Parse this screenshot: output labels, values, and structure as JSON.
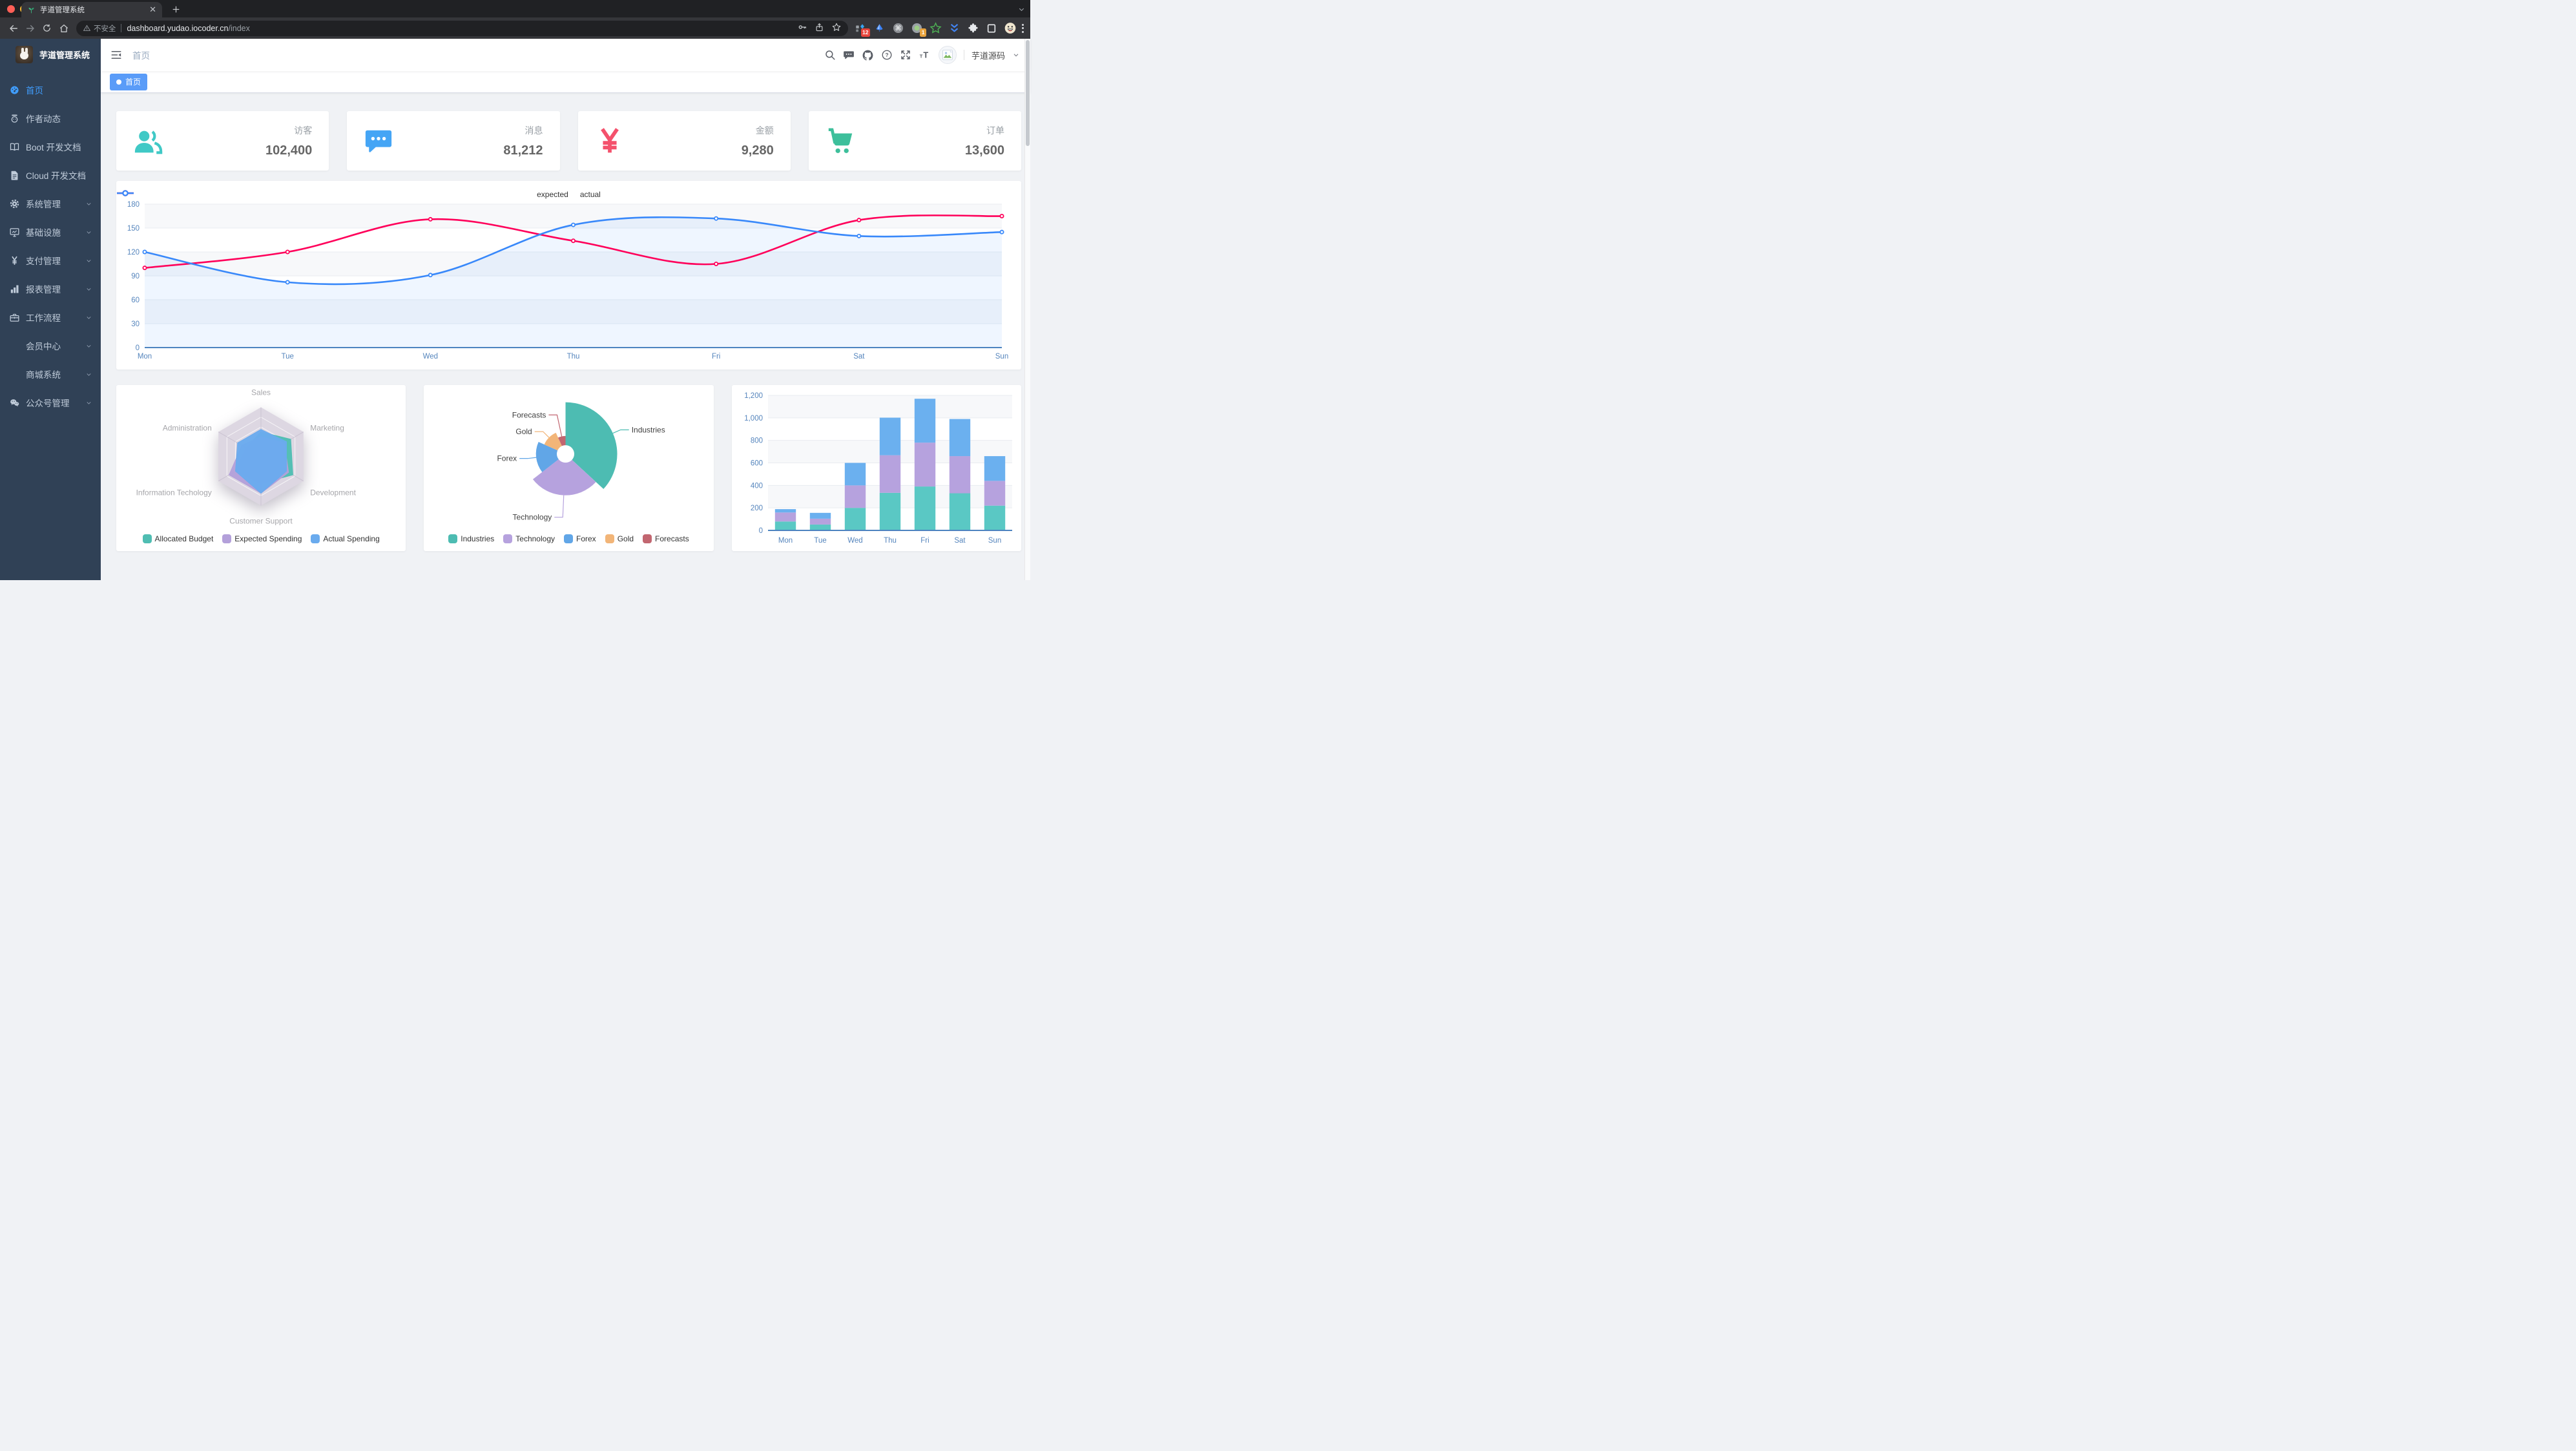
{
  "browser": {
    "tab_title": "芋道管理系统",
    "security_label": "不安全",
    "url_host": "dashboard.yudao.iocoder.cn",
    "url_path": "/index",
    "extension_badges": [
      "12",
      "1"
    ]
  },
  "sidebar": {
    "logo_title": "芋道管理系统",
    "items": [
      {
        "label": "首页",
        "icon": "dashboard",
        "active": true
      },
      {
        "label": "作者动态",
        "icon": "people"
      },
      {
        "label": "Boot 开发文档",
        "icon": "book"
      },
      {
        "label": "Cloud 开发文档",
        "icon": "document"
      },
      {
        "label": "系统管理",
        "icon": "gear",
        "expandable": true
      },
      {
        "label": "基础设施",
        "icon": "monitor",
        "expandable": true
      },
      {
        "label": "支付管理",
        "icon": "yen",
        "expandable": true
      },
      {
        "label": "报表管理",
        "icon": "barchart",
        "expandable": true
      },
      {
        "label": "工作流程",
        "icon": "briefcase",
        "expandable": true
      },
      {
        "label": "会员中心",
        "icon": null,
        "expandable": true
      },
      {
        "label": "商城系统",
        "icon": null,
        "expandable": true
      },
      {
        "label": "公众号管理",
        "icon": "wechat",
        "expandable": true
      }
    ]
  },
  "header": {
    "breadcrumb": "首页",
    "username": "芋道源码"
  },
  "tags": [
    {
      "label": "首页",
      "active": true
    }
  ],
  "stats": [
    {
      "label": "访客",
      "value": "102,400",
      "icon": "peoples",
      "color": "#40c9c6"
    },
    {
      "label": "消息",
      "value": "81,212",
      "icon": "message",
      "color": "#45a5f5"
    },
    {
      "label": "金额",
      "value": "9,280",
      "icon": "money",
      "color": "#f4516c"
    },
    {
      "label": "订单",
      "value": "13,600",
      "icon": "cart",
      "color": "#3dbf9b"
    }
  ],
  "colors": {
    "accent": "#409eff",
    "sidebar_bg": "#304156",
    "sidebar_text": "#bfcbd9",
    "tag_active": "#5a9cf8",
    "axis_label": "#5585bd"
  },
  "chart_data": [
    {
      "type": "line",
      "x": [
        "Mon",
        "Tue",
        "Wed",
        "Thu",
        "Fri",
        "Sat",
        "Sun"
      ],
      "ylim": [
        0,
        180
      ],
      "yticks": [
        0,
        30,
        60,
        90,
        120,
        150,
        180
      ],
      "grid": true,
      "legend_position": "top",
      "series": [
        {
          "name": "expected",
          "color": "#ff005a",
          "values": [
            100,
            120,
            161,
            134,
            105,
            160,
            165
          ]
        },
        {
          "name": "actual",
          "color": "#3888fa",
          "values": [
            120,
            82,
            91,
            154,
            162,
            140,
            145
          ],
          "area": true
        }
      ]
    },
    {
      "type": "radar",
      "legend_position": "bottom",
      "indicators": [
        {
          "name": "Sales",
          "max": 10000
        },
        {
          "name": "Administration",
          "max": 20000
        },
        {
          "name": "Information Techology",
          "max": 20000
        },
        {
          "name": "Customer Support",
          "max": 20000
        },
        {
          "name": "Development",
          "max": 20000
        },
        {
          "name": "Marketing",
          "max": 20000
        }
      ],
      "series": [
        {
          "name": "Allocated Budget",
          "color": "#4fbdb2",
          "values": [
            5000,
            7000,
            12000,
            11000,
            15000,
            14000
          ]
        },
        {
          "name": "Expected Spending",
          "color": "#b3a0da",
          "values": [
            4000,
            9000,
            15000,
            15000,
            13000,
            11000
          ]
        },
        {
          "name": "Actual Spending",
          "color": "#6aabee",
          "values": [
            5500,
            11000,
            12000,
            15000,
            12000,
            12000
          ]
        }
      ]
    },
    {
      "type": "pie",
      "rose": true,
      "legend_position": "bottom",
      "slices": [
        {
          "name": "Industries",
          "value": 320,
          "color": "#4dbcb2"
        },
        {
          "name": "Technology",
          "value": 240,
          "color": "#b6a2de"
        },
        {
          "name": "Forex",
          "value": 149,
          "color": "#61a6e7"
        },
        {
          "name": "Gold",
          "value": 100,
          "color": "#f2b578"
        },
        {
          "name": "Forecasts",
          "value": 59,
          "color": "#c26670"
        }
      ]
    },
    {
      "type": "bar",
      "stacked": true,
      "categories": [
        "Mon",
        "Tue",
        "Wed",
        "Thu",
        "Fri",
        "Sat",
        "Sun"
      ],
      "ylim": [
        0,
        1200
      ],
      "yticks": [
        0,
        200,
        400,
        600,
        800,
        1000,
        1200
      ],
      "series": [
        {
          "color": "#5ac8c4",
          "values": [
            79,
            52,
            200,
            334,
            390,
            330,
            220
          ]
        },
        {
          "color": "#b6a2de",
          "values": [
            80,
            52,
            200,
            334,
            390,
            330,
            220
          ]
        },
        {
          "color": "#6bb0ef",
          "values": [
            30,
            52,
            200,
            334,
            390,
            330,
            220
          ]
        }
      ]
    }
  ]
}
